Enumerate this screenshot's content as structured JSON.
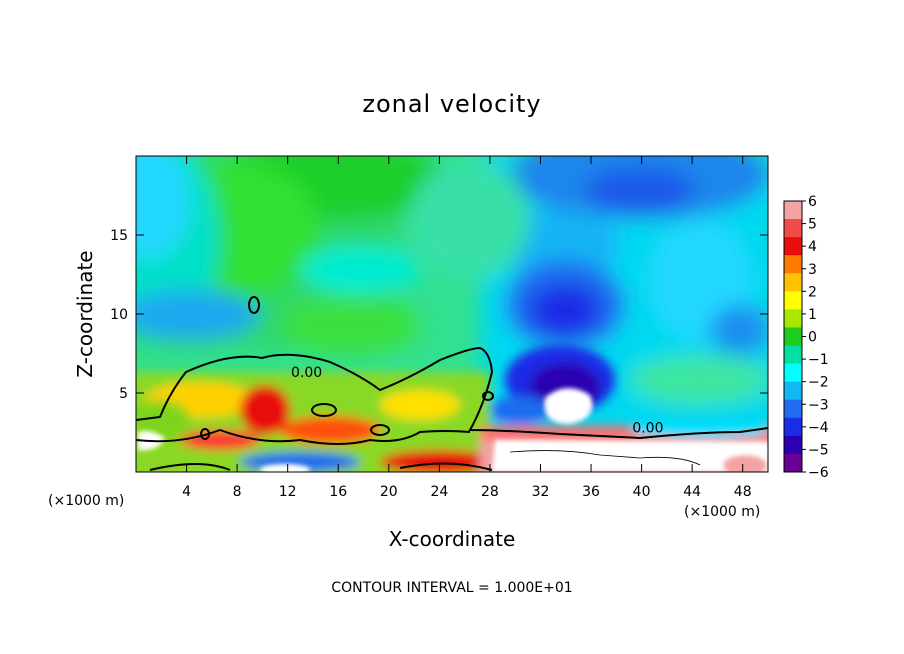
{
  "chart_data": {
    "type": "heatmap",
    "title": "zonal velocity",
    "xlabel": "X-coordinate",
    "ylabel": "Z-coordinate",
    "x_unit_left": "(×1000 m)",
    "x_unit_right": "(×1000 m)",
    "xlim": [
      0,
      50
    ],
    "ylim": [
      0,
      20
    ],
    "x_ticks": [
      4,
      8,
      12,
      16,
      20,
      24,
      28,
      32,
      36,
      40,
      44,
      48
    ],
    "y_ticks": [
      5,
      10,
      15
    ],
    "colorbar": {
      "min": -6,
      "max": 6,
      "tick_labels": [
        "6",
        "5",
        "4",
        "3",
        "2",
        "1",
        "0",
        "−1",
        "−2",
        "−3",
        "−4",
        "−5",
        "−6"
      ],
      "colors": [
        "#f4a3a3",
        "#f24a4a",
        "#e80e0e",
        "#ff7a00",
        "#ffc200",
        "#ffff00",
        "#a8e800",
        "#1ecc1e",
        "#00e0a0",
        "#00ffff",
        "#10b8f4",
        "#1f6cf0",
        "#1a2ce6",
        "#2a00b0",
        "#6a0096"
      ]
    },
    "contour_labels": [
      {
        "x": 13.5,
        "z": 6.0,
        "text": "0.00"
      },
      {
        "x": 40.5,
        "z": 2.5,
        "text": "0.00"
      }
    ],
    "footer": "CONTOUR INTERVAL = 1.000E+01",
    "field_description": "Upper region ~0 to −1 (green/cyan); negative core ~−5 near x≈34, z≈6; strong positive near-surface flow below z≈3; zero contour near z≈4–7."
  }
}
